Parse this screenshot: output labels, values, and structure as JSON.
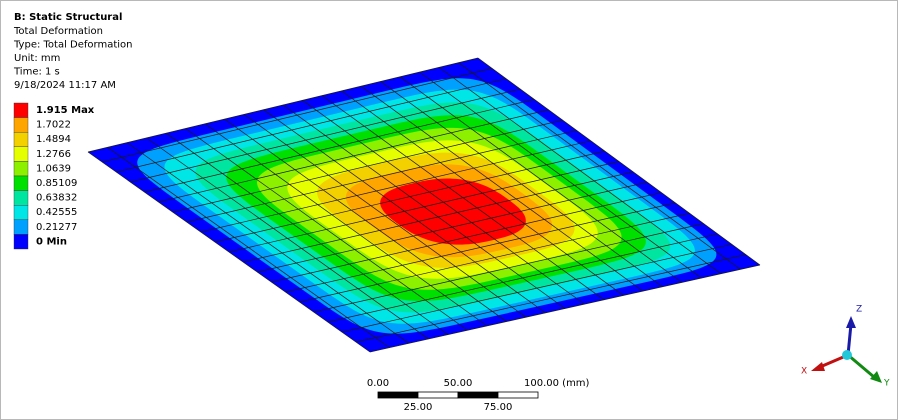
{
  "header": {
    "title": "B: Static Structural",
    "lines": [
      "Total Deformation",
      "Type: Total Deformation",
      "Unit: mm",
      "Time: 1 s",
      "9/18/2024 11:17 AM"
    ]
  },
  "legend": {
    "labels": [
      "1.915 Max",
      "1.7022",
      "1.4894",
      "1.2766",
      "1.0639",
      "0.85109",
      "0.63832",
      "0.42555",
      "0.21277",
      "0 Min"
    ],
    "colors": [
      "#ff0000",
      "#ffa500",
      "#f3d100",
      "#e6ff00",
      "#8cf000",
      "#00e000",
      "#00e6a0",
      "#00e6e6",
      "#00a0ff",
      "#0000ff"
    ]
  },
  "scale_bar": {
    "top_labels": [
      "0.00",
      "50.00",
      "100.00 (mm)"
    ],
    "bottom_labels": [
      "25.00",
      "75.00"
    ]
  },
  "triad": {
    "z": "Z",
    "x": "X",
    "y": "Y"
  }
}
